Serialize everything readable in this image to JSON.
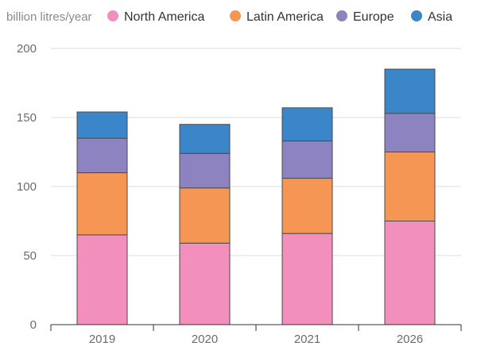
{
  "chart_data": {
    "type": "bar",
    "stacked": true,
    "ylabel": "billion litres/year",
    "categories": [
      "2019",
      "2020",
      "2021",
      "2026"
    ],
    "series": [
      {
        "name": "North America",
        "color": "#f28fbd",
        "values": [
          65,
          59,
          66,
          75
        ]
      },
      {
        "name": "Latin America",
        "color": "#f69655",
        "values": [
          45,
          40,
          40,
          50
        ]
      },
      {
        "name": "Europe",
        "color": "#8e83c1",
        "values": [
          25,
          25,
          27,
          28
        ]
      },
      {
        "name": "Asia",
        "color": "#3b86c8",
        "values": [
          19,
          21,
          24,
          32
        ]
      }
    ],
    "ylim": [
      0,
      200
    ],
    "yticks": [
      0,
      50,
      100,
      150,
      200
    ],
    "grid": true,
    "legend": "top"
  }
}
